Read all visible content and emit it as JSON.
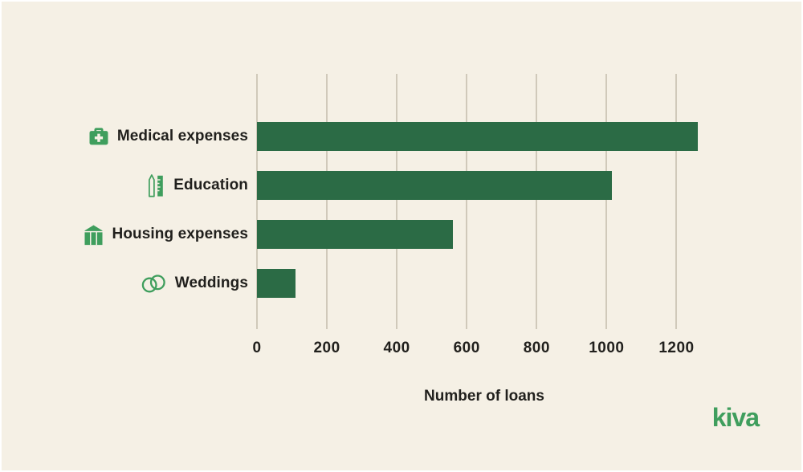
{
  "page": {
    "background": "#f5f0e5",
    "text_color": "#21201d"
  },
  "brand": {
    "logo_text": "kiva",
    "logo_color": "#3f9e5d"
  },
  "chart_data": {
    "type": "bar",
    "orientation": "horizontal",
    "title": "",
    "xlabel": "Number of loans",
    "ylabel": "",
    "categories": [
      "Medical expenses",
      "Education",
      "Housing expenses",
      "Weddings"
    ],
    "values": [
      1260,
      1015,
      560,
      110
    ],
    "icons": [
      "first-aid-kit",
      "pencil-and-ruler",
      "house",
      "wedding-rings"
    ],
    "ticks": [
      0,
      200,
      400,
      600,
      800,
      1000,
      1200
    ],
    "xlim": [
      0,
      1300
    ],
    "grid": "vertical-gridlines-only",
    "legend": "none",
    "bar_color": "#2b6b45",
    "gridline_color": "#d0c9ba",
    "icon_color": "#3f9e5d"
  }
}
